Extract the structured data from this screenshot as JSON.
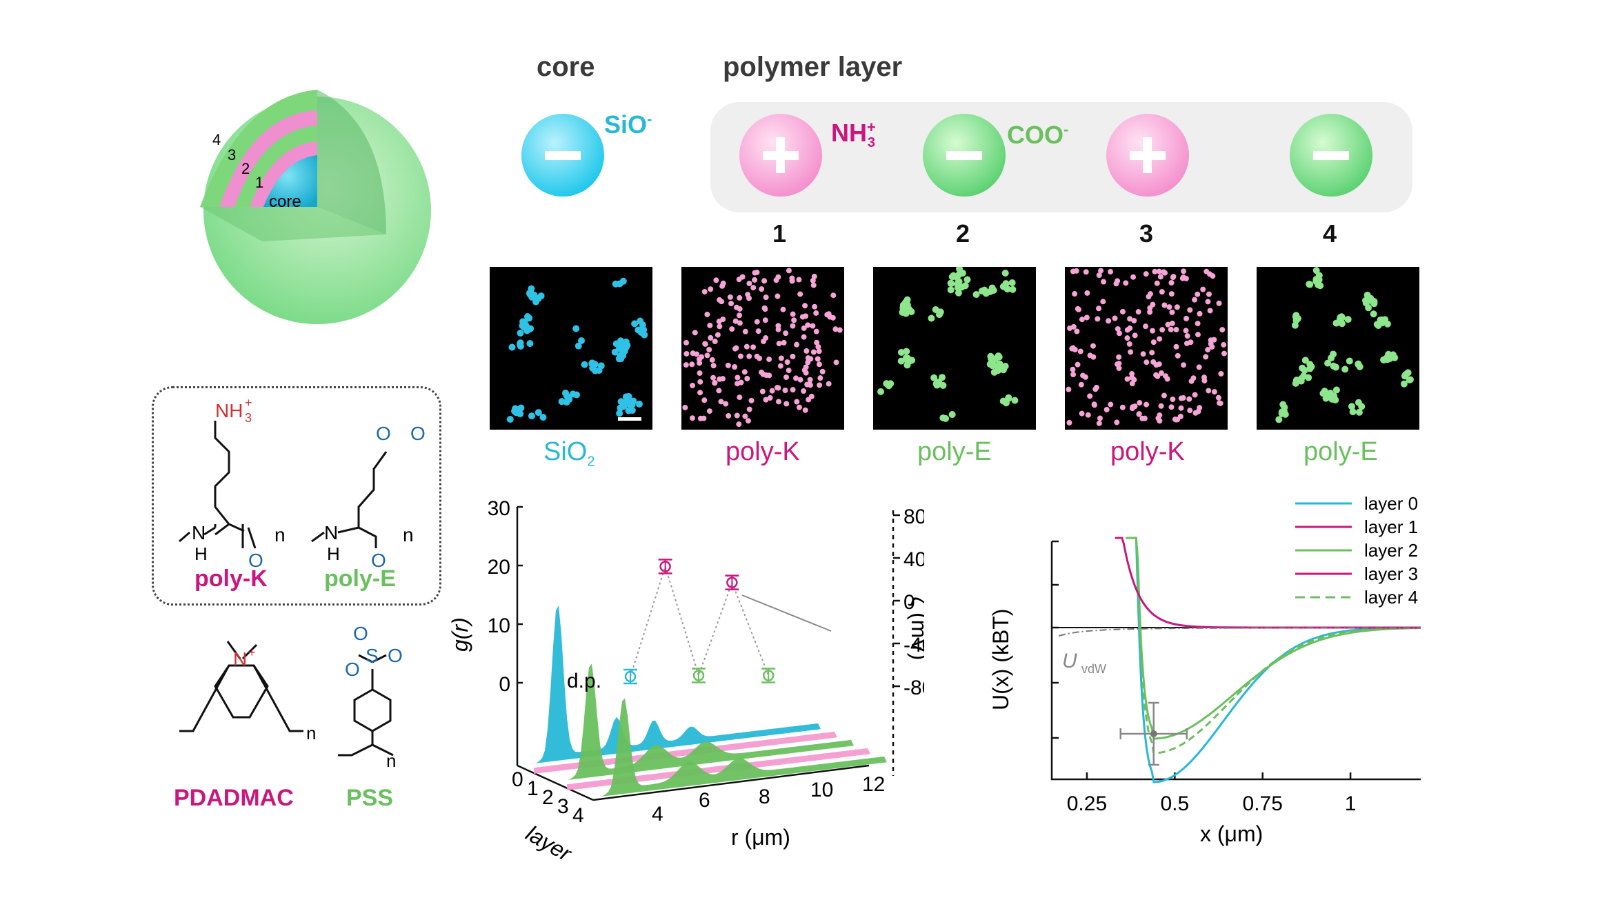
{
  "colors": {
    "cyan": "#27b8d6",
    "pink": "#c8177f",
    "green": "#6abf5e",
    "pinkLight": "#f39bd0",
    "greenLight": "#8fd98a",
    "blue": "#1f67a8",
    "red": "#cc3333"
  },
  "sphere": {
    "layers": [
      "4",
      "3",
      "2",
      "1"
    ],
    "core": "core"
  },
  "header": {
    "core": "core",
    "polymer": "polymer layer"
  },
  "ions": {
    "core": "SiO",
    "core_sup": "-",
    "nh": "NH",
    "nh_sup": "+",
    "nh_sub": "3",
    "coo": "COO",
    "coo_sup": "-"
  },
  "layer_numbers": [
    "1",
    "2",
    "3",
    "4"
  ],
  "micro_labels": [
    {
      "text": "SiO",
      "sub": "2",
      "color": "#27b8d6"
    },
    {
      "text": "poly-K",
      "color": "#c8177f"
    },
    {
      "text": "poly-E",
      "color": "#6abf5e"
    },
    {
      "text": "poly-K",
      "color": "#c8177f"
    },
    {
      "text": "poly-E",
      "color": "#6abf5e"
    }
  ],
  "structures": {
    "nh3": "NH",
    "nh3_sub": "3",
    "nh3_sup": "+",
    "o": "O",
    "nh": "N",
    "h": "H",
    "n": "n",
    "polyK": "poly-K",
    "polyE": "poly-E",
    "nplus": "N",
    "nplus_sup": "+",
    "s": "S",
    "ominus": "O",
    "pdadmac": "PDADMAC",
    "pss": "PSS"
  },
  "chart_data": [
    {
      "type": "line",
      "title": "",
      "ylabel": "g(r)",
      "ylabel_right": "ζ (mV)",
      "xlabel": "r (μm)",
      "zlabel": "layer",
      "annotation": "d.p.",
      "y_ticks": [
        "30",
        "20",
        "10",
        "0"
      ],
      "y_right_ticks": [
        "80",
        "40",
        "0",
        "-40",
        "-80"
      ],
      "x_ticks": [
        "4",
        "6",
        "8",
        "10",
        "12"
      ],
      "layer_ticks": [
        "0",
        "1",
        "2",
        "3",
        "4"
      ],
      "zeta": {
        "layers": [
          0,
          1,
          2,
          3,
          4
        ],
        "values": [
          -31,
          72,
          -30,
          57,
          -30
        ]
      },
      "series": [
        {
          "layer": 0,
          "peak_r": 4.2,
          "peak_g": 25
        },
        {
          "layer": 1,
          "peak_r": 4.2,
          "peak_g": 1
        },
        {
          "layer": 2,
          "peak_r": 4.2,
          "peak_g": 18
        },
        {
          "layer": 3,
          "peak_r": 4.2,
          "peak_g": 1
        },
        {
          "layer": 4,
          "peak_r": 4.2,
          "peak_g": 15
        }
      ]
    },
    {
      "type": "line",
      "title": "",
      "ylabel": "U(x) (kBT)",
      "xlabel": "x (μm)",
      "x_ticks": [
        "0.25",
        "0.5",
        "0.75",
        "1"
      ],
      "xlim": [
        0.15,
        1.2
      ],
      "annotation": "U",
      "annotation_sub": "vdW",
      "series": [
        {
          "name": "layer 0",
          "color": "#27b8d6",
          "style": "solid",
          "min_x": 0.44,
          "min_u": -3.2
        },
        {
          "name": "layer 1",
          "color": "#c8177f",
          "style": "solid"
        },
        {
          "name": "layer 2",
          "color": "#6abf5e",
          "style": "solid",
          "min_x": 0.44,
          "min_u": -2.3
        },
        {
          "name": "layer 3",
          "color": "#c8177f",
          "style": "solid"
        },
        {
          "name": "layer 4",
          "color": "#6abf5e",
          "style": "dashed"
        }
      ]
    }
  ]
}
